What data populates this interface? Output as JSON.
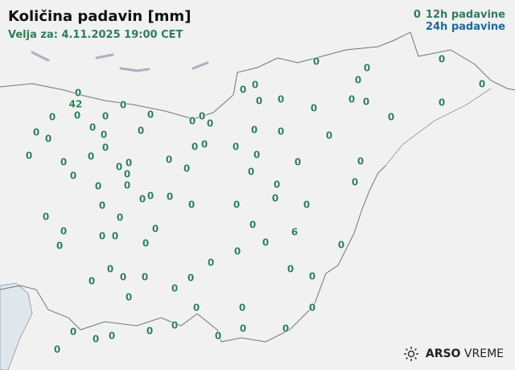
{
  "header": {
    "title": "Količina padavin [mm]",
    "valid": "Velja za: 4.11.2025 19:00 CET"
  },
  "legend": {
    "marker": "0",
    "label_12h": "12h padavine",
    "label_24h": "24h padavine",
    "color_12h": "#2e7d5b",
    "color_24h": "#1f6a9a"
  },
  "logo": {
    "brand": "ARSO",
    "product": "VREME",
    "icon": "sun-icon"
  },
  "stations": [
    [
      97,
      116,
      "0"
    ],
    [
      94,
      122,
      "42"
    ],
    [
      153,
      131,
      "0"
    ],
    [
      65,
      146,
      "0"
    ],
    [
      96,
      142,
      "0"
    ],
    [
      131,
      145,
      "0"
    ],
    [
      187,
      143,
      "0"
    ],
    [
      239,
      151,
      "0"
    ],
    [
      251,
      145,
      "0"
    ],
    [
      260,
      154,
      "0"
    ],
    [
      45,
      165,
      "0"
    ],
    [
      60,
      173,
      "0"
    ],
    [
      115,
      159,
      "0"
    ],
    [
      129,
      168,
      "0"
    ],
    [
      175,
      163,
      "0"
    ],
    [
      242,
      183,
      "0"
    ],
    [
      254,
      180,
      "0"
    ],
    [
      36,
      194,
      "0"
    ],
    [
      79,
      202,
      "0"
    ],
    [
      113,
      195,
      "0"
    ],
    [
      131,
      184,
      "0"
    ],
    [
      148,
      208,
      "0"
    ],
    [
      160,
      203,
      "0"
    ],
    [
      155,
      214,
      "0"
    ],
    [
      158,
      223,
      "0"
    ],
    [
      210,
      199,
      "0"
    ],
    [
      232,
      210,
      "0"
    ],
    [
      91,
      219,
      "0"
    ],
    [
      122,
      232,
      "0"
    ],
    [
      177,
      248,
      "0"
    ],
    [
      185,
      244,
      "0"
    ],
    [
      211,
      245,
      "0"
    ],
    [
      238,
      255,
      "0"
    ],
    [
      127,
      256,
      "0"
    ],
    [
      57,
      270,
      "0"
    ],
    [
      79,
      288,
      "0"
    ],
    [
      149,
      271,
      "0"
    ],
    [
      193,
      285,
      "0"
    ],
    [
      74,
      306,
      "0"
    ],
    [
      127,
      294,
      "0"
    ],
    [
      143,
      294,
      "0"
    ],
    [
      181,
      303,
      "0"
    ],
    [
      137,
      335,
      "0"
    ],
    [
      153,
      345,
      "0"
    ],
    [
      180,
      345,
      "0"
    ],
    [
      114,
      350,
      "0"
    ],
    [
      262,
      327,
      "0"
    ],
    [
      217,
      359,
      "0"
    ],
    [
      237,
      346,
      "0"
    ],
    [
      160,
      370,
      "0"
    ],
    [
      244,
      383,
      "0"
    ],
    [
      91,
      413,
      "0"
    ],
    [
      119,
      422,
      "0"
    ],
    [
      139,
      418,
      "0"
    ],
    [
      71,
      435,
      "0"
    ],
    [
      186,
      412,
      "0"
    ],
    [
      217,
      405,
      "0"
    ],
    [
      271,
      418,
      "0"
    ],
    [
      301,
      383,
      "0"
    ],
    [
      302,
      409,
      "0"
    ],
    [
      355,
      409,
      "0"
    ],
    [
      388,
      383,
      "0"
    ],
    [
      388,
      344,
      "0"
    ],
    [
      361,
      335,
      "0"
    ],
    [
      295,
      313,
      "0"
    ],
    [
      330,
      302,
      "0"
    ],
    [
      366,
      289,
      "6"
    ],
    [
      314,
      280,
      "0"
    ],
    [
      294,
      255,
      "0"
    ],
    [
      342,
      247,
      "0"
    ],
    [
      344,
      230,
      "0"
    ],
    [
      381,
      255,
      "0"
    ],
    [
      424,
      305,
      "0"
    ],
    [
      441,
      227,
      "0"
    ],
    [
      448,
      201,
      "0"
    ],
    [
      370,
      202,
      "0"
    ],
    [
      312,
      214,
      "0"
    ],
    [
      319,
      193,
      "0"
    ],
    [
      293,
      183,
      "0"
    ],
    [
      316,
      162,
      "0"
    ],
    [
      349,
      164,
      "0"
    ],
    [
      409,
      169,
      "0"
    ],
    [
      486,
      146,
      "0"
    ],
    [
      302,
      112,
      "0"
    ],
    [
      317,
      106,
      "0"
    ],
    [
      322,
      126,
      "0"
    ],
    [
      349,
      124,
      "0"
    ],
    [
      390,
      135,
      "0"
    ],
    [
      437,
      124,
      "0"
    ],
    [
      455,
      127,
      "0"
    ],
    [
      445,
      100,
      "0"
    ],
    [
      456,
      85,
      "0"
    ],
    [
      393,
      77,
      "0"
    ],
    [
      549,
      74,
      "0"
    ],
    [
      599,
      105,
      "0"
    ],
    [
      549,
      128,
      "0"
    ]
  ]
}
